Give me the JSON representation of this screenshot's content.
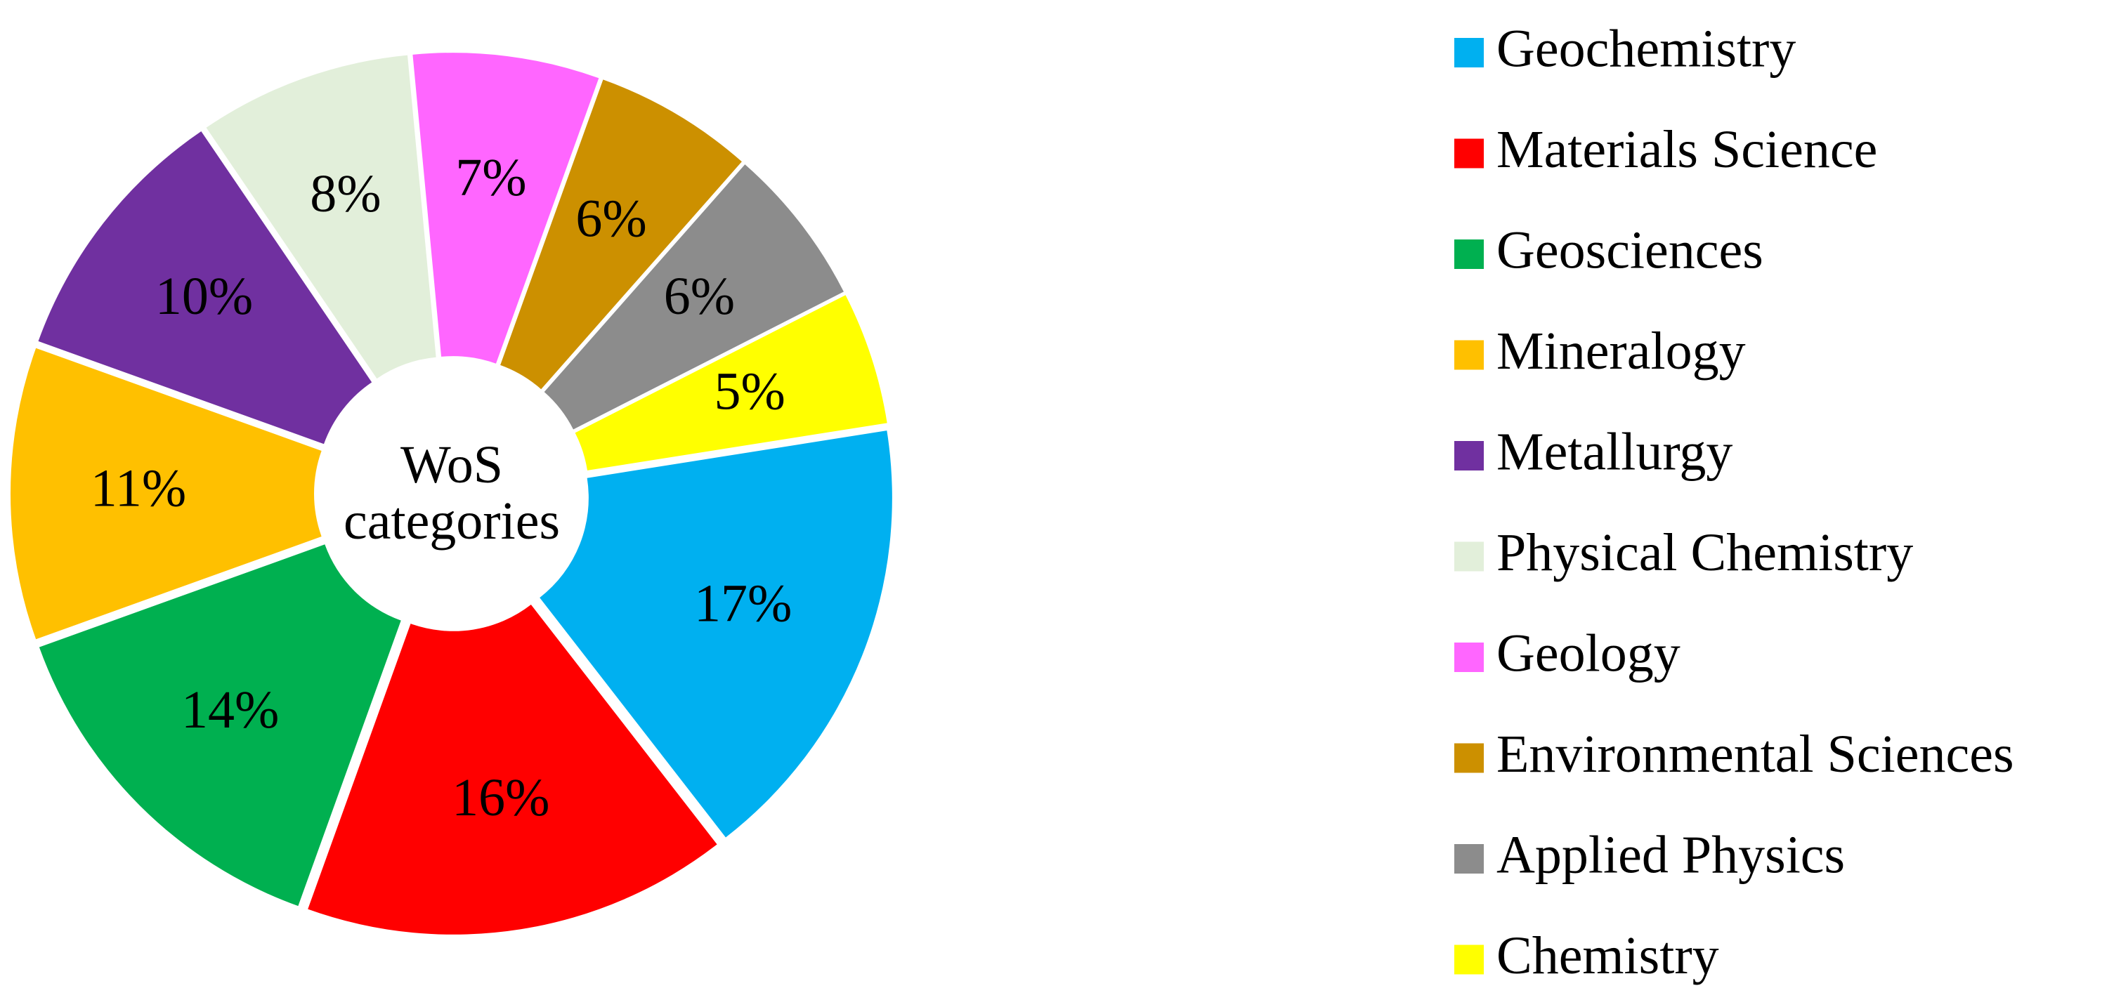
{
  "chart_data": {
    "type": "donut",
    "center_label": "WoS categories",
    "categories": [
      "Geochemistry",
      "Materials Science",
      "Geosciences",
      "Mineralogy",
      "Metallurgy",
      "Physical Chemistry",
      "Geology",
      "Environmental Sciences",
      "Applied Physics",
      "Chemistry"
    ],
    "values": [
      17,
      16,
      14,
      11,
      10,
      8,
      7,
      6,
      6,
      5
    ],
    "value_labels": [
      "17%",
      "16%",
      "14%",
      "11%",
      "10%",
      "8%",
      "7%",
      "6%",
      "6%",
      "5%"
    ],
    "colors": [
      "#00b0f0",
      "#ff0000",
      "#00b050",
      "#ffc000",
      "#7030a0",
      "#e2efda",
      "#ff66ff",
      "#cc9000",
      "#8c8c8c",
      "#ffff00"
    ],
    "legend": "right"
  }
}
